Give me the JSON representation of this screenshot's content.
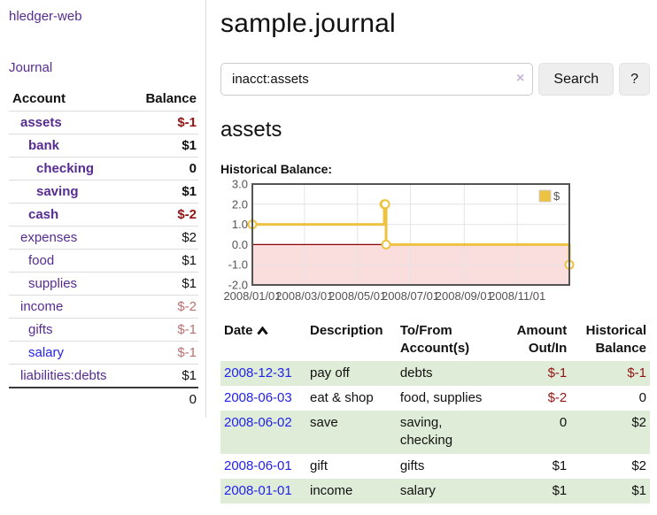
{
  "palette": {
    "purple": "#572c90",
    "blue": "#2222ee",
    "neg_strong": "#941414",
    "neg_soft": "#bd6f6f",
    "row_green": "#dfedd8",
    "gold": "#edc240",
    "pink_fill": "#fadddd",
    "zero_line": "#8b0000"
  },
  "sidebar": {
    "brand": "hledger-web",
    "nav_journal": "Journal",
    "accounts_table": {
      "col_account": "Account",
      "col_balance": "Balance",
      "rows": [
        {
          "name": "assets",
          "depth": 1,
          "balance": "$-1",
          "emph": true,
          "tone": "neg",
          "link": "purple"
        },
        {
          "name": "bank",
          "depth": 2,
          "balance": "$1",
          "emph": true,
          "tone": "pos",
          "link": "purple"
        },
        {
          "name": "checking",
          "depth": 3,
          "balance": "0",
          "emph": true,
          "tone": "pos",
          "link": "purple"
        },
        {
          "name": "saving",
          "depth": 3,
          "balance": "$1",
          "emph": true,
          "tone": "pos",
          "link": "purple"
        },
        {
          "name": "cash",
          "depth": 2,
          "balance": "$-2",
          "emph": true,
          "tone": "neg",
          "link": "purple"
        },
        {
          "name": "expenses",
          "depth": 1,
          "balance": "$2",
          "emph": false,
          "tone": "pos",
          "link": "purple"
        },
        {
          "name": "food",
          "depth": 2,
          "balance": "$1",
          "emph": false,
          "tone": "pos",
          "link": "purple"
        },
        {
          "name": "supplies",
          "depth": 2,
          "balance": "$1",
          "emph": false,
          "tone": "pos",
          "link": "purple"
        },
        {
          "name": "income",
          "depth": 1,
          "balance": "$-2",
          "emph": false,
          "tone": "neg-soft",
          "link": "purple"
        },
        {
          "name": "gifts",
          "depth": 2,
          "balance": "$-1",
          "emph": false,
          "tone": "neg-soft",
          "link": "purple"
        },
        {
          "name": "salary",
          "depth": 2,
          "balance": "$-1",
          "emph": false,
          "tone": "neg-soft",
          "link": "blue"
        },
        {
          "name": "liabilities:debts",
          "depth": 1,
          "balance": "$1",
          "emph": false,
          "tone": "pos",
          "link": "purple"
        }
      ],
      "total": "0"
    }
  },
  "header": {
    "title": "sample.journal"
  },
  "search": {
    "value": "inacct:assets",
    "clear_icon": "×",
    "button": "Search",
    "help_button": "?"
  },
  "account_page": {
    "heading": "assets",
    "chart_title": "Historical Balance:"
  },
  "chart_data": {
    "type": "line",
    "step": true,
    "title": "Historical Balance",
    "series": [
      {
        "name": "$",
        "color": "#edc240",
        "points": [
          [
            "2008-01-01",
            1
          ],
          [
            "2008-06-01",
            2
          ],
          [
            "2008-06-02",
            2
          ],
          [
            "2008-06-03",
            0
          ],
          [
            "2008-12-31",
            -1
          ]
        ]
      }
    ],
    "ylim": [
      -2,
      3
    ],
    "y_ticks": [
      3,
      2,
      1,
      0,
      -1,
      -2
    ],
    "y_tick_labels": [
      "3.0",
      "2.0",
      "1.0",
      "0.0",
      "-1.0",
      "-2.0"
    ],
    "x_axis": {
      "start_date": "2008-01-01",
      "span_days": 365,
      "tick_labels": [
        "2008/01/01",
        "2008/03/01",
        "2008/05/01",
        "2008/07/01",
        "2008/09/01",
        "2008/11/01"
      ]
    },
    "legend": {
      "label": "$",
      "position": "top-right"
    },
    "grid": true,
    "negative_region_shaded": true
  },
  "register_table": {
    "columns": [
      {
        "label": "Date",
        "sorted": "asc"
      },
      {
        "label": "Description"
      },
      {
        "label": "To/From Account(s)"
      },
      {
        "label": "Amount Out/In",
        "align": "right"
      },
      {
        "label": "Historical Balance",
        "align": "right"
      }
    ],
    "rows": [
      {
        "date": "2008-12-31",
        "description": "pay off",
        "accounts": "debts",
        "amount": "$-1",
        "amount_tone": "neg",
        "balance": "$-1",
        "balance_tone": "neg"
      },
      {
        "date": "2008-06-03",
        "description": "eat & shop",
        "accounts": "food, supplies",
        "amount": "$-2",
        "amount_tone": "neg",
        "balance": "0",
        "balance_tone": "pos"
      },
      {
        "date": "2008-06-02",
        "description": "save",
        "accounts": "saving, checking",
        "amount": "0",
        "amount_tone": "pos",
        "balance": "$2",
        "balance_tone": "pos"
      },
      {
        "date": "2008-06-01",
        "description": "gift",
        "accounts": "gifts",
        "amount": "$1",
        "amount_tone": "pos",
        "balance": "$2",
        "balance_tone": "pos"
      },
      {
        "date": "2008-01-01",
        "description": "income",
        "accounts": "salary",
        "amount": "$1",
        "amount_tone": "pos",
        "balance": "$1",
        "balance_tone": "pos"
      }
    ]
  }
}
